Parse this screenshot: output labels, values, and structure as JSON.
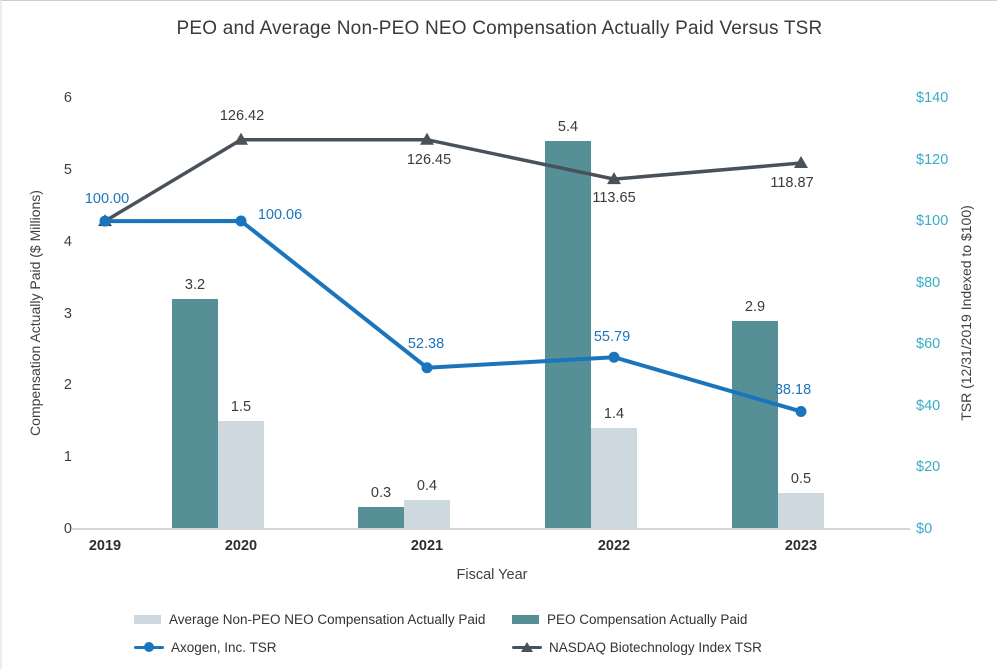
{
  "colors": {
    "peo_bar": "#578F96",
    "non_peo_bar": "#CDD9DE",
    "axogen_line": "#1B75BC",
    "nasdaq_line": "#49515B",
    "right_axis_text": "#3AACC4",
    "axis_line": "#D6D6D6",
    "text": "#3B3B3B"
  },
  "chart_data": {
    "type": "combo-bar-line",
    "title": "PEO and Average Non-PEO NEO Compensation Actually Paid Versus TSR",
    "gridlines": false,
    "x_axis": {
      "title": "Fiscal Year",
      "categories": [
        "2019",
        "2020",
        "2021",
        "2022",
        "2023"
      ]
    },
    "left_axis": {
      "title": "Compensation Actually Paid ($ Millions)",
      "range": [
        0,
        6
      ],
      "ticks": [
        {
          "v": 0,
          "label": "0"
        },
        {
          "v": 1,
          "label": "1"
        },
        {
          "v": 2,
          "label": "2"
        },
        {
          "v": 3,
          "label": "3"
        },
        {
          "v": 4,
          "label": "4"
        },
        {
          "v": 5,
          "label": "5"
        },
        {
          "v": 6,
          "label": "6"
        }
      ]
    },
    "right_axis": {
      "title": "TSR (12/31/2019 Indexed to $100)",
      "range": [
        0,
        140
      ],
      "ticks": [
        {
          "v": 0,
          "label": "$0"
        },
        {
          "v": 20,
          "label": "$20"
        },
        {
          "v": 40,
          "label": "$40"
        },
        {
          "v": 60,
          "label": "$60"
        },
        {
          "v": 80,
          "label": "$80"
        },
        {
          "v": 100,
          "label": "$100"
        },
        {
          "v": 120,
          "label": "$120"
        },
        {
          "v": 140,
          "label": "$140"
        }
      ]
    },
    "bar_series": [
      {
        "name": "PEO Compensation Actually Paid",
        "color": "#578F96",
        "axis": "left",
        "values": [
          null,
          3.2,
          0.3,
          5.4,
          2.9
        ],
        "labels": [
          null,
          "3.2",
          "0.3",
          "5.4",
          "2.9"
        ]
      },
      {
        "name": "Average Non-PEO NEO Compensation Actually Paid",
        "color": "#CDD9DE",
        "axis": "left",
        "values": [
          null,
          1.5,
          0.4,
          1.4,
          0.5
        ],
        "labels": [
          null,
          "1.5",
          "0.4",
          "1.4",
          "0.5"
        ]
      }
    ],
    "line_series": [
      {
        "name": "Axogen, Inc. TSR",
        "color": "#1B75BC",
        "axis": "right",
        "marker": "circle",
        "values": [
          100.0,
          100.06,
          52.38,
          55.79,
          38.18
        ],
        "labels": [
          "100.00",
          "100.06",
          "52.38",
          "55.79",
          "38.18"
        ],
        "label_color": "#1B75BC"
      },
      {
        "name": "NASDAQ Biotechnology Index TSR",
        "color": "#49515B",
        "axis": "right",
        "marker": "triangle-up",
        "values": [
          100.0,
          126.42,
          126.45,
          113.65,
          118.87
        ],
        "labels": [
          null,
          "126.42",
          "126.45",
          "113.65",
          "118.87"
        ],
        "label_color": "#3B3B3B"
      }
    ],
    "legend": [
      {
        "label": "Average Non-PEO NEO Compensation Actually Paid",
        "swatch": "bar",
        "color": "#CDD9DE"
      },
      {
        "label": "PEO Compensation Actually Paid",
        "swatch": "bar",
        "color": "#578F96"
      },
      {
        "label": "Axogen, Inc. TSR",
        "swatch": "line-circle",
        "color": "#1B75BC"
      },
      {
        "label": "NASDAQ Biotechnology Index TSR",
        "swatch": "line-triangle",
        "color": "#49515B"
      }
    ]
  }
}
